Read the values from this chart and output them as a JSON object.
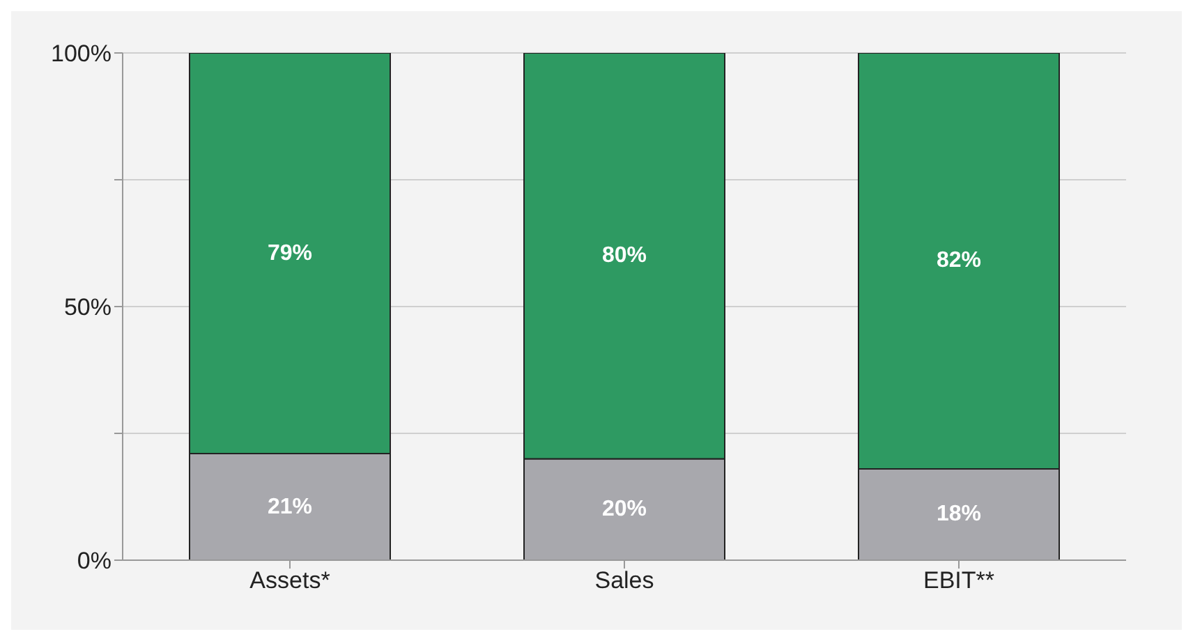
{
  "chart_data": {
    "type": "bar",
    "stacked": true,
    "categories": [
      "Assets*",
      "Sales",
      "EBIT**"
    ],
    "series": [
      {
        "color": "#a8a8ad",
        "values": [
          21,
          20,
          18
        ],
        "value_labels": [
          "21%",
          "20%",
          "18%"
        ]
      },
      {
        "color": "#2e9a62",
        "values": [
          79,
          80,
          82
        ],
        "value_labels": [
          "79%",
          "80%",
          "82%"
        ]
      }
    ],
    "ylim": [
      0,
      100
    ],
    "yticks": [
      {
        "value": 0,
        "label": "0%"
      },
      {
        "value": 25,
        "label": null
      },
      {
        "value": 50,
        "label": "50%"
      },
      {
        "value": 75,
        "label": null
      },
      {
        "value": 100,
        "label": "100%"
      }
    ],
    "grid": "y"
  }
}
